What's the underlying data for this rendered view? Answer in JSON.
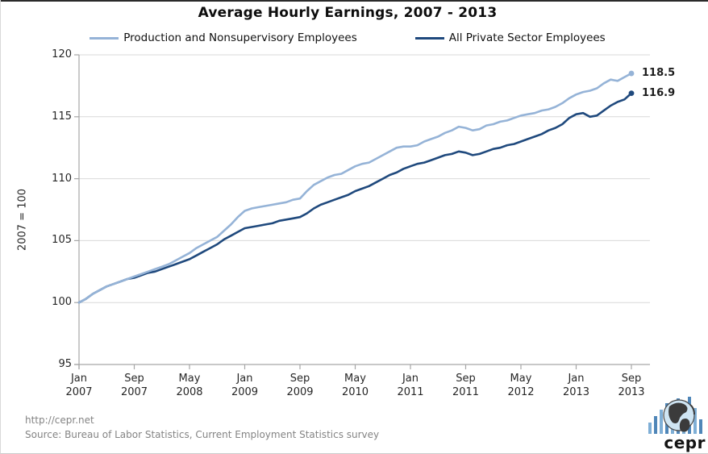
{
  "title": "Average Hourly Earnings, 2007 - 2013",
  "legend": [
    {
      "label": "Production and Nonsupervisory Employees",
      "color": "#95b3d7"
    },
    {
      "label": "All Private Sector Employees",
      "color": "#1f497d"
    }
  ],
  "y_axis": {
    "label": "2007 = 100",
    "ticks": [
      120,
      115,
      110,
      105,
      100,
      95
    ]
  },
  "x_axis": {
    "ticks": [
      {
        "line1": "Jan",
        "line2": "2007"
      },
      {
        "line1": "Sep",
        "line2": "2007"
      },
      {
        "line1": "May",
        "line2": "2008"
      },
      {
        "line1": "Jan",
        "line2": "2009"
      },
      {
        "line1": "Sep",
        "line2": "2009"
      },
      {
        "line1": "May",
        "line2": "2010"
      },
      {
        "line1": "Jan",
        "line2": "2011"
      },
      {
        "line1": "Sep",
        "line2": "2011"
      },
      {
        "line1": "May",
        "line2": "2012"
      },
      {
        "line1": "Jan",
        "line2": "2013"
      },
      {
        "line1": "Sep",
        "line2": "2013"
      }
    ]
  },
  "footer": {
    "url": "http://cepr.net",
    "source": "Source: Bureau of Labor Statistics, Current Employment Statistics survey"
  },
  "logo": {
    "text": "cepr",
    "bars": [
      14,
      22,
      30,
      38,
      28,
      44,
      36,
      46,
      32,
      18
    ],
    "bar_colors": [
      "#7fafd6",
      "#4f86b8"
    ],
    "globe_ocean": "#cfe5f3",
    "globe_land": "#3b3b3b"
  },
  "colors": {
    "gridline": "#d9d9d9",
    "axis": "#a6a6a6",
    "tick_text": "#262626",
    "footer_text": "#848484"
  },
  "chart_data": {
    "type": "line",
    "title": "Average Hourly Earnings, 2007 - 2013",
    "ylabel": "2007 = 100",
    "ylim": [
      95,
      120
    ],
    "y_ticks": [
      95,
      100,
      105,
      110,
      115,
      120
    ],
    "grid": "horizontal",
    "legend_position": "top",
    "x_unit": "month",
    "x": [
      "2007-01",
      "2007-02",
      "2007-03",
      "2007-04",
      "2007-05",
      "2007-06",
      "2007-07",
      "2007-08",
      "2007-09",
      "2007-10",
      "2007-11",
      "2007-12",
      "2008-01",
      "2008-02",
      "2008-03",
      "2008-04",
      "2008-05",
      "2008-06",
      "2008-07",
      "2008-08",
      "2008-09",
      "2008-10",
      "2008-11",
      "2008-12",
      "2009-01",
      "2009-02",
      "2009-03",
      "2009-04",
      "2009-05",
      "2009-06",
      "2009-07",
      "2009-08",
      "2009-09",
      "2009-10",
      "2009-11",
      "2009-12",
      "2010-01",
      "2010-02",
      "2010-03",
      "2010-04",
      "2010-05",
      "2010-06",
      "2010-07",
      "2010-08",
      "2010-09",
      "2010-10",
      "2010-11",
      "2010-12",
      "2011-01",
      "2011-02",
      "2011-03",
      "2011-04",
      "2011-05",
      "2011-06",
      "2011-07",
      "2011-08",
      "2011-09",
      "2011-10",
      "2011-11",
      "2011-12",
      "2012-01",
      "2012-02",
      "2012-03",
      "2012-04",
      "2012-05",
      "2012-06",
      "2012-07",
      "2012-08",
      "2012-09",
      "2012-10",
      "2012-11",
      "2012-12",
      "2013-01",
      "2013-02",
      "2013-03",
      "2013-04",
      "2013-05",
      "2013-06",
      "2013-07",
      "2013-08",
      "2013-09"
    ],
    "series": [
      {
        "name": "Production and Nonsupervisory Employees",
        "color": "#95b3d7",
        "end_label": "118.5",
        "values": [
          100.0,
          100.3,
          100.7,
          101.0,
          101.3,
          101.5,
          101.7,
          101.9,
          102.1,
          102.3,
          102.5,
          102.7,
          102.9,
          103.1,
          103.4,
          103.7,
          104.0,
          104.4,
          104.7,
          105.0,
          105.3,
          105.8,
          106.3,
          106.9,
          107.4,
          107.6,
          107.7,
          107.8,
          107.9,
          108.0,
          108.1,
          108.3,
          108.4,
          109.0,
          109.5,
          109.8,
          110.1,
          110.3,
          110.4,
          110.7,
          111.0,
          111.2,
          111.3,
          111.6,
          111.9,
          112.2,
          112.5,
          112.6,
          112.6,
          112.7,
          113.0,
          113.2,
          113.4,
          113.7,
          113.9,
          114.2,
          114.1,
          113.9,
          114.0,
          114.3,
          114.4,
          114.6,
          114.7,
          114.9,
          115.1,
          115.2,
          115.3,
          115.5,
          115.6,
          115.8,
          116.1,
          116.5,
          116.8,
          117.0,
          117.1,
          117.3,
          117.7,
          118.0,
          117.9,
          118.2,
          118.5
        ]
      },
      {
        "name": "All Private Sector Employees",
        "color": "#1f497d",
        "end_label": "116.9",
        "values": [
          100.0,
          100.3,
          100.7,
          101.0,
          101.3,
          101.5,
          101.7,
          101.9,
          102.0,
          102.2,
          102.4,
          102.5,
          102.7,
          102.9,
          103.1,
          103.3,
          103.5,
          103.8,
          104.1,
          104.4,
          104.7,
          105.1,
          105.4,
          105.7,
          106.0,
          106.1,
          106.2,
          106.3,
          106.4,
          106.6,
          106.7,
          106.8,
          106.9,
          107.2,
          107.6,
          107.9,
          108.1,
          108.3,
          108.5,
          108.7,
          109.0,
          109.2,
          109.4,
          109.7,
          110.0,
          110.3,
          110.5,
          110.8,
          111.0,
          111.2,
          111.3,
          111.5,
          111.7,
          111.9,
          112.0,
          112.2,
          112.1,
          111.9,
          112.0,
          112.2,
          112.4,
          112.5,
          112.7,
          112.8,
          113.0,
          113.2,
          113.4,
          113.6,
          113.9,
          114.1,
          114.4,
          114.9,
          115.2,
          115.3,
          115.0,
          115.1,
          115.5,
          115.9,
          116.2,
          116.4,
          116.9
        ]
      }
    ]
  }
}
